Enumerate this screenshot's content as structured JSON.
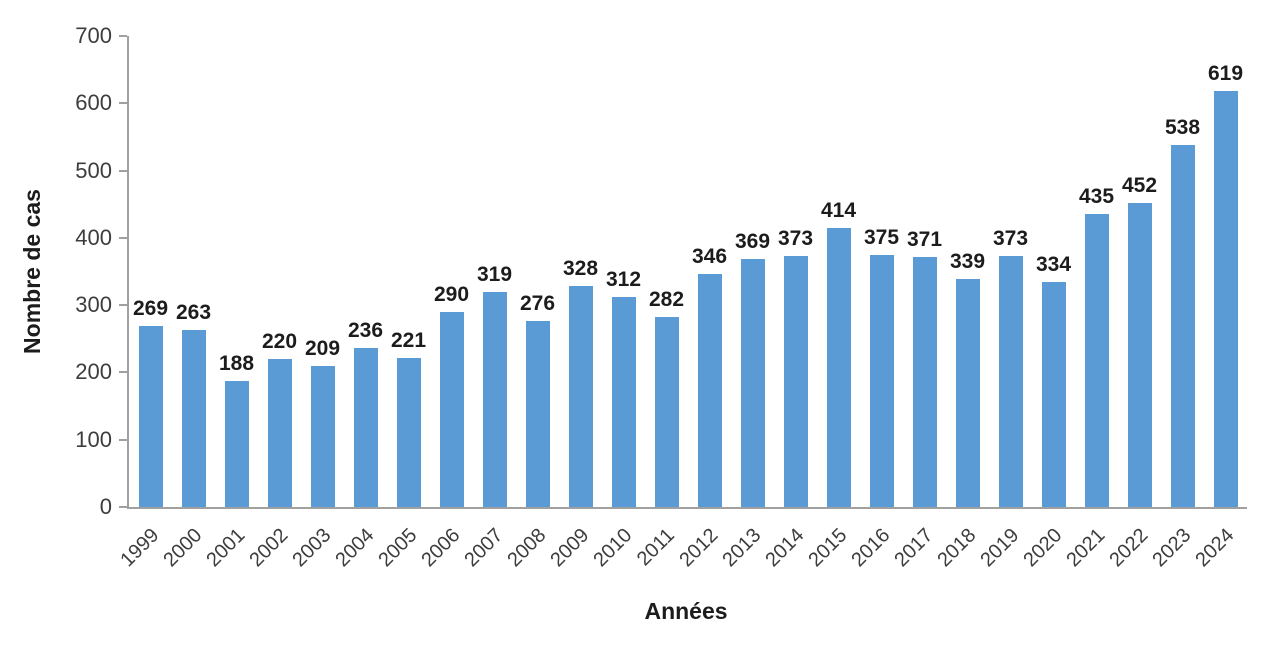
{
  "chart_data": {
    "type": "bar",
    "title": "",
    "xlabel": "Années",
    "ylabel": "Nombre de cas",
    "categories": [
      "1999",
      "2000",
      "2001",
      "2002",
      "2003",
      "2004",
      "2005",
      "2006",
      "2007",
      "2008",
      "2009",
      "2010",
      "2011",
      "2012",
      "2013",
      "2014",
      "2015",
      "2016",
      "2017",
      "2018",
      "2019",
      "2020",
      "2021",
      "2022",
      "2023",
      "2024"
    ],
    "values": [
      269,
      263,
      188,
      220,
      209,
      236,
      221,
      290,
      319,
      276,
      328,
      312,
      282,
      346,
      369,
      373,
      414,
      375,
      371,
      339,
      373,
      334,
      435,
      452,
      538,
      619
    ],
    "ylim": [
      0,
      700
    ],
    "yticks": [
      0,
      100,
      200,
      300,
      400,
      500,
      600,
      700
    ],
    "grid": false,
    "legend_position": "none",
    "bar_color": "#5B9BD5",
    "axis_color": "#a0a0a0",
    "data_label_color": "#1c1c1c",
    "tick_label_color": "#3d3d3d"
  }
}
